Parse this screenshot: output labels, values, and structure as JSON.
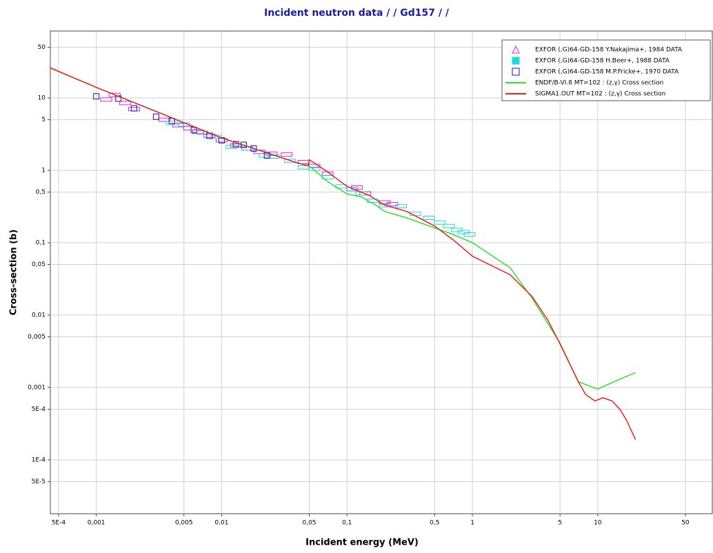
{
  "chart_data": {
    "type": "line",
    "title": "Incident neutron data / / Gd157 / /",
    "xlabel": "Incident energy (MeV)",
    "ylabel": "Cross-section (b)",
    "xscale": "log",
    "yscale": "log",
    "grid": true,
    "legend": "upper right",
    "xlim": [
      0.00043,
      82
    ],
    "ylim": [
      1.8e-05,
      84
    ],
    "xticks": [
      {
        "value": 0.0005,
        "label": "5E-4"
      },
      {
        "value": 0.001,
        "label": "0,001"
      },
      {
        "value": 0.005,
        "label": "0,005"
      },
      {
        "value": 0.01,
        "label": "0,01"
      },
      {
        "value": 0.05,
        "label": "0,05"
      },
      {
        "value": 0.1,
        "label": "0,1"
      },
      {
        "value": 0.5,
        "label": "0,5"
      },
      1,
      5,
      10,
      50
    ],
    "yticks": [
      {
        "value": 5e-05,
        "label": "5E-5"
      },
      {
        "value": 0.0001,
        "label": "1E-4"
      },
      {
        "value": 0.0005,
        "label": "5E-4"
      },
      {
        "value": 0.001,
        "label": "0,001"
      },
      {
        "value": 0.005,
        "label": "0,005"
      },
      {
        "value": 0.01,
        "label": "0,01"
      },
      {
        "value": 0.05,
        "label": "0,05"
      },
      {
        "value": 0.1,
        "label": "0,1"
      },
      {
        "value": 0.5,
        "label": "0,5"
      },
      1,
      5,
      10,
      50
    ],
    "series": [
      {
        "name": "EXFOR  (,G)64-GD-158 Y.Nakajima+, 1984 DATA",
        "type": "scatter",
        "marker": "triangle",
        "color": "#e020e0",
        "x": [
          0.0012,
          0.0014,
          0.0017,
          0.002,
          0.0035,
          0.0045,
          0.0055,
          0.0065,
          0.008,
          0.01,
          0.013,
          0.016,
          0.02,
          0.025,
          0.033,
          0.045,
          0.055,
          0.07,
          0.11,
          0.12,
          0.14,
          0.2,
          0.23
        ],
        "values": [
          9.5,
          11,
          8.5,
          7,
          5,
          4.2,
          3.8,
          3.4,
          3,
          2.6,
          2.2,
          2.0,
          1.8,
          1.7,
          1.65,
          1.3,
          1.15,
          0.9,
          0.55,
          0.58,
          0.48,
          0.36,
          0.34
        ]
      },
      {
        "name": "EXFOR  (,G)64-GD-158 H.Beer+, 1988 DATA",
        "type": "scatter",
        "marker": "square-filled",
        "color": "#20d8e0",
        "x": [
          0.004,
          0.005,
          0.007,
          0.009,
          0.012,
          0.016,
          0.022,
          0.026,
          0.035,
          0.045,
          0.055,
          0.07,
          0.09,
          0.11,
          0.13,
          0.16,
          0.2,
          0.27,
          0.35,
          0.45,
          0.55,
          0.65,
          0.75,
          0.85,
          0.95
        ],
        "values": [
          4.5,
          4.3,
          3.3,
          2.9,
          2.1,
          2.0,
          1.6,
          1.55,
          1.35,
          1.1,
          1.05,
          0.8,
          0.6,
          0.55,
          0.48,
          0.38,
          0.33,
          0.32,
          0.25,
          0.22,
          0.19,
          0.17,
          0.15,
          0.14,
          0.13
        ]
      },
      {
        "name": "EXFOR  (,G)64-GD-158 M.P.Fricke+, 1970 DATA",
        "type": "scatter",
        "marker": "square",
        "color": "#1010c0",
        "x": [
          0.001,
          0.0015,
          0.002,
          0.003,
          0.004,
          0.006,
          0.008,
          0.01,
          0.013,
          0.015,
          0.018,
          0.023
        ],
        "values": [
          10.5,
          9.8,
          7.2,
          5.5,
          4.8,
          3.6,
          3.0,
          2.6,
          2.3,
          2.25,
          2.0,
          1.6
        ]
      },
      {
        "name": "ENDF/B-VI.8  MT=102 : (z,γ) Cross section",
        "type": "line",
        "color": "#30e030",
        "x": [
          0.00043,
          0.001,
          0.01,
          0.04,
          0.05,
          0.07,
          0.1,
          0.13,
          0.17,
          0.2,
          0.3,
          0.5,
          0.7,
          1,
          2,
          3,
          5,
          7,
          10,
          15,
          20
        ],
        "values": [
          26,
          14,
          2.8,
          1.27,
          1.15,
          0.7,
          0.47,
          0.43,
          0.33,
          0.27,
          0.22,
          0.16,
          0.13,
          0.1,
          0.045,
          0.017,
          0.0041,
          0.0012,
          0.00095,
          0.0013,
          0.0016
        ]
      },
      {
        "name": "SIGMA1.OUT  MT=102 : (z,γ) Cross section",
        "type": "line",
        "color": "#f02020",
        "x": [
          0.00043,
          0.001,
          0.01,
          0.04,
          0.049,
          0.05,
          0.07,
          0.1,
          0.15,
          0.2,
          0.3,
          0.5,
          0.7,
          1,
          2,
          3,
          4,
          5,
          7,
          8,
          9.5,
          11,
          13,
          15,
          17,
          20
        ],
        "values": [
          26,
          14,
          2.8,
          1.27,
          1.15,
          1.4,
          0.95,
          0.6,
          0.45,
          0.33,
          0.27,
          0.17,
          0.11,
          0.065,
          0.036,
          0.018,
          0.0085,
          0.004,
          0.0012,
          0.0008,
          0.00065,
          0.00072,
          0.00065,
          0.0005,
          0.00035,
          0.00019
        ]
      }
    ]
  }
}
